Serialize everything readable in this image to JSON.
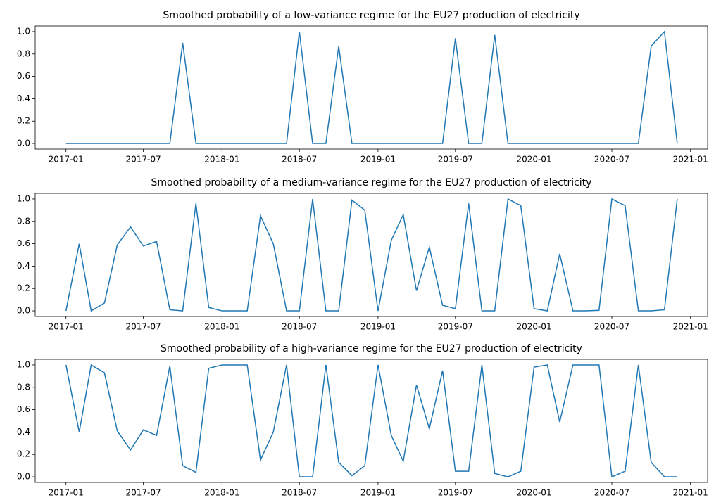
{
  "chart_data": [
    {
      "type": "line",
      "title": "Smoothed probability of a low-variance regime for the EU27 production of electricity",
      "x": [
        "2017-01",
        "2017-02",
        "2017-03",
        "2017-04",
        "2017-05",
        "2017-06",
        "2017-07",
        "2017-08",
        "2017-09",
        "2017-10",
        "2017-11",
        "2017-12",
        "2018-01",
        "2018-02",
        "2018-03",
        "2018-04",
        "2018-05",
        "2018-06",
        "2018-07",
        "2018-08",
        "2018-09",
        "2018-10",
        "2018-11",
        "2018-12",
        "2019-01",
        "2019-02",
        "2019-03",
        "2019-04",
        "2019-05",
        "2019-06",
        "2019-07",
        "2019-08",
        "2019-09",
        "2019-10",
        "2019-11",
        "2019-12",
        "2020-01",
        "2020-02",
        "2020-03",
        "2020-04",
        "2020-05",
        "2020-06",
        "2020-07",
        "2020-08",
        "2020-09",
        "2020-10",
        "2020-11",
        "2020-12"
      ],
      "series": [
        {
          "color": "#1f77b4",
          "values": [
            0,
            0,
            0,
            0,
            0,
            0,
            0,
            0,
            0,
            0.9,
            0,
            0,
            0,
            0,
            0,
            0,
            0,
            0,
            1.0,
            0,
            0,
            0.87,
            0,
            0,
            0,
            0,
            0,
            0,
            0,
            0,
            0.94,
            0,
            0,
            0.97,
            0,
            0,
            0,
            0,
            0,
            0,
            0,
            0,
            0,
            0,
            0,
            0.87,
            1.0,
            0
          ]
        }
      ],
      "xlim": [
        "2016-10-21",
        "2021-02-10"
      ],
      "xticks": [
        "2017-01",
        "2017-07",
        "2018-01",
        "2018-07",
        "2019-01",
        "2019-07",
        "2020-01",
        "2020-07",
        "2021-01"
      ],
      "ylim": [
        -0.05,
        1.05
      ],
      "yticks": [
        {
          "value": 0,
          "label": "0.0"
        },
        {
          "value": 0.2,
          "label": "0.2"
        },
        {
          "value": 0.4,
          "label": "0.4"
        },
        {
          "value": 0.6,
          "label": "0.6"
        },
        {
          "value": 0.8,
          "label": "0.8"
        },
        {
          "value": 1,
          "label": "1.0"
        }
      ]
    },
    {
      "type": "line",
      "title": "Smoothed probability of a medium-variance regime for the EU27 production of electricity",
      "x": [
        "2017-01",
        "2017-02",
        "2017-03",
        "2017-04",
        "2017-05",
        "2017-06",
        "2017-07",
        "2017-08",
        "2017-09",
        "2017-10",
        "2017-11",
        "2017-12",
        "2018-01",
        "2018-02",
        "2018-03",
        "2018-04",
        "2018-05",
        "2018-06",
        "2018-07",
        "2018-08",
        "2018-09",
        "2018-10",
        "2018-11",
        "2018-12",
        "2019-01",
        "2019-02",
        "2019-03",
        "2019-04",
        "2019-05",
        "2019-06",
        "2019-07",
        "2019-08",
        "2019-09",
        "2019-10",
        "2019-11",
        "2019-12",
        "2020-01",
        "2020-02",
        "2020-03",
        "2020-04",
        "2020-05",
        "2020-06",
        "2020-07",
        "2020-08",
        "2020-09",
        "2020-10",
        "2020-11",
        "2020-12"
      ],
      "series": [
        {
          "color": "#1f77b4",
          "values": [
            0,
            0.6,
            0,
            0.07,
            0.59,
            0.75,
            0.58,
            0.62,
            0.01,
            0,
            0.96,
            0.03,
            0,
            0,
            0,
            0.85,
            0.6,
            0,
            0,
            1.0,
            0,
            0,
            0.99,
            0.9,
            0,
            0.63,
            0.86,
            0.18,
            0.57,
            0.05,
            0.02,
            0.96,
            0,
            0,
            1.0,
            0.94,
            0.02,
            0,
            0.51,
            0,
            0,
            0.005,
            1.0,
            0.94,
            0,
            0,
            0.01,
            1.0
          ]
        }
      ],
      "xlim": [
        "2016-10-21",
        "2021-02-10"
      ],
      "xticks": [
        "2017-01",
        "2017-07",
        "2018-01",
        "2018-07",
        "2019-01",
        "2019-07",
        "2020-01",
        "2020-07",
        "2021-01"
      ],
      "ylim": [
        -0.05,
        1.05
      ],
      "yticks": [
        {
          "value": 0,
          "label": "0.0"
        },
        {
          "value": 0.2,
          "label": "0.2"
        },
        {
          "value": 0.4,
          "label": "0.4"
        },
        {
          "value": 0.6,
          "label": "0.6"
        },
        {
          "value": 0.8,
          "label": "0.8"
        },
        {
          "value": 1,
          "label": "1.0"
        }
      ]
    },
    {
      "type": "line",
      "title": "Smoothed probability of a high-variance regime for the EU27 production of electricity",
      "x": [
        "2017-01",
        "2017-02",
        "2017-03",
        "2017-04",
        "2017-05",
        "2017-06",
        "2017-07",
        "2017-08",
        "2017-09",
        "2017-10",
        "2017-11",
        "2017-12",
        "2018-01",
        "2018-02",
        "2018-03",
        "2018-04",
        "2018-05",
        "2018-06",
        "2018-07",
        "2018-08",
        "2018-09",
        "2018-10",
        "2018-11",
        "2018-12",
        "2019-01",
        "2019-02",
        "2019-03",
        "2019-04",
        "2019-05",
        "2019-06",
        "2019-07",
        "2019-08",
        "2019-09",
        "2019-10",
        "2019-11",
        "2019-12",
        "2020-01",
        "2020-02",
        "2020-03",
        "2020-04",
        "2020-05",
        "2020-06",
        "2020-07",
        "2020-08",
        "2020-09",
        "2020-10",
        "2020-11",
        "2020-12"
      ],
      "series": [
        {
          "color": "#1f77b4",
          "values": [
            1.0,
            0.4,
            1.0,
            0.93,
            0.41,
            0.24,
            0.42,
            0.37,
            0.99,
            0.1,
            0.04,
            0.97,
            1.0,
            1.0,
            1.0,
            0.15,
            0.4,
            1.0,
            0,
            0,
            1.0,
            0.13,
            0.01,
            0.1,
            1.0,
            0.37,
            0.14,
            0.82,
            0.43,
            0.95,
            0.05,
            0.05,
            1.0,
            0.03,
            0,
            0.05,
            0.98,
            1.0,
            0.49,
            1.0,
            1.0,
            1.0,
            0,
            0.05,
            1.0,
            0.13,
            0,
            0
          ]
        }
      ],
      "xlim": [
        "2016-10-21",
        "2021-02-10"
      ],
      "xticks": [
        "2017-01",
        "2017-07",
        "2018-01",
        "2018-07",
        "2019-01",
        "2019-07",
        "2020-01",
        "2020-07",
        "2021-01"
      ],
      "ylim": [
        -0.05,
        1.05
      ],
      "yticks": [
        {
          "value": 0,
          "label": "0.0"
        },
        {
          "value": 0.2,
          "label": "0.2"
        },
        {
          "value": 0.4,
          "label": "0.4"
        },
        {
          "value": 0.6,
          "label": "0.6"
        },
        {
          "value": 0.8,
          "label": "0.8"
        },
        {
          "value": 1,
          "label": "1.0"
        }
      ]
    }
  ]
}
